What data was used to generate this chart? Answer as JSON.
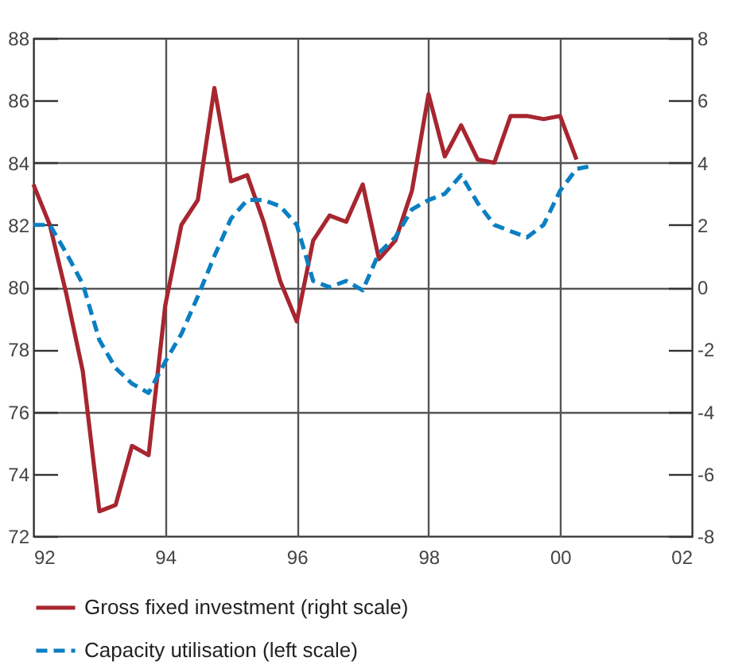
{
  "chart_data": {
    "type": "line",
    "xlim": [
      "1992",
      "2002"
    ],
    "xticks": [
      {
        "value": "1992",
        "label": "92"
      },
      {
        "value": "1994",
        "label": "94"
      },
      {
        "value": "1996",
        "label": "96"
      },
      {
        "value": "1998",
        "label": "98"
      },
      {
        "value": "2000",
        "label": "00"
      },
      {
        "value": "2002",
        "label": "02"
      }
    ],
    "ylim": [
      72,
      88
    ],
    "yticks": [
      72,
      74,
      76,
      78,
      80,
      82,
      84,
      86,
      88
    ],
    "y2lim": [
      -8,
      8
    ],
    "y2ticks": [
      -8,
      -6,
      -4,
      -2,
      0,
      2,
      4,
      6,
      8
    ],
    "grid": true,
    "legend": "bottom",
    "series": [
      {
        "name": "Gross fixed investment (right scale)",
        "color": "#a7262f",
        "axis": "y2",
        "line_style": "solid",
        "x": [
          "1992-01",
          "1992-04",
          "1992-07",
          "1992-10",
          "1993-01",
          "1993-04",
          "1993-07",
          "1993-10",
          "1994-01",
          "1994-04",
          "1994-07",
          "1994-10",
          "1995-01",
          "1995-04",
          "1995-07",
          "1995-10",
          "1996-01",
          "1996-04",
          "1996-07",
          "1996-10",
          "1997-01",
          "1997-04",
          "1997-07",
          "1997-10",
          "1998-01",
          "1998-04",
          "1998-07",
          "1998-10",
          "1999-01",
          "1999-04",
          "1999-07",
          "1999-10",
          "2000-01",
          "2000-04"
        ],
        "values": [
          3.3,
          2.0,
          -0.2,
          -2.7,
          -7.2,
          -7.0,
          -5.1,
          -5.4,
          -0.6,
          2.0,
          2.8,
          6.4,
          3.4,
          3.6,
          2.1,
          0.2,
          -1.1,
          1.5,
          2.3,
          2.1,
          3.3,
          0.9,
          1.5,
          3.1,
          6.2,
          4.2,
          5.2,
          4.1,
          4.0,
          5.5,
          5.5,
          5.4,
          5.5,
          4.1
        ]
      },
      {
        "name": "Capacity utilisation (left scale)",
        "color": "#0a7fc2",
        "axis": "y",
        "line_style": "dashed",
        "x": [
          "1992-01",
          "1992-04",
          "1992-07",
          "1992-10",
          "1993-01",
          "1993-04",
          "1993-07",
          "1993-10",
          "1994-01",
          "1994-04",
          "1994-07",
          "1994-10",
          "1995-01",
          "1995-04",
          "1995-07",
          "1995-10",
          "1996-01",
          "1996-04",
          "1996-07",
          "1996-10",
          "1997-01",
          "1997-04",
          "1997-07",
          "1997-10",
          "1998-01",
          "1998-04",
          "1998-07",
          "1998-10",
          "1999-01",
          "1999-04",
          "1999-07",
          "1999-10",
          "2000-01",
          "2000-04",
          "2000-07"
        ],
        "values": [
          82.0,
          82.0,
          81.1,
          80.1,
          78.3,
          77.4,
          76.9,
          76.6,
          77.6,
          78.5,
          79.7,
          81.0,
          82.2,
          82.8,
          82.8,
          82.6,
          82.0,
          80.2,
          80.0,
          80.2,
          79.9,
          81.1,
          81.6,
          82.5,
          82.8,
          83.0,
          83.6,
          82.7,
          82.0,
          81.8,
          81.6,
          82.0,
          83.1,
          83.8,
          83.9
        ]
      }
    ]
  }
}
